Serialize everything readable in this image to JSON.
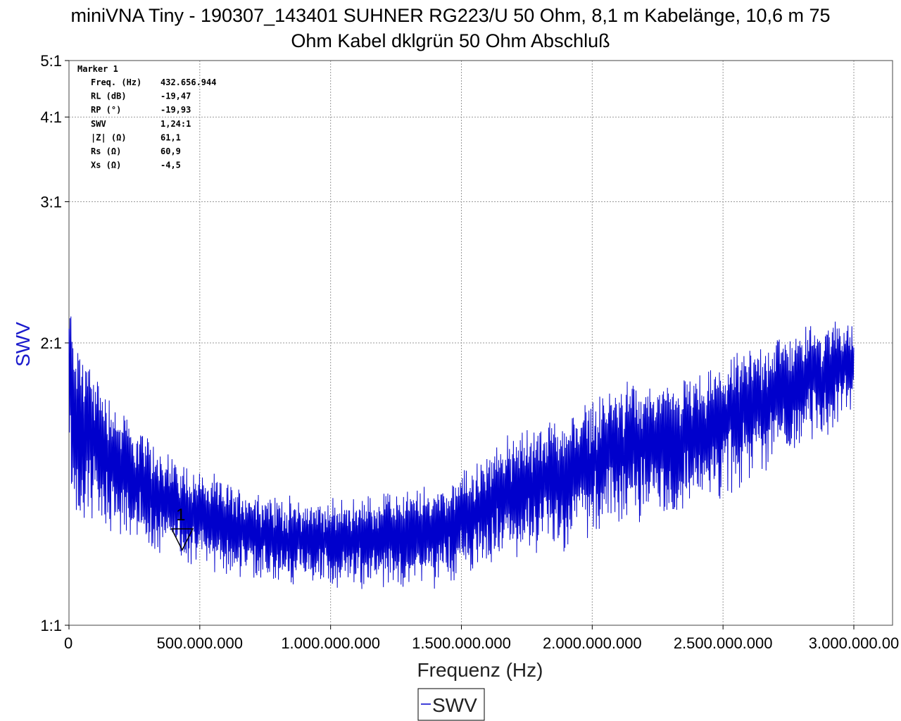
{
  "chart_data": {
    "type": "line",
    "title_line1": "miniVNA Tiny - 190307_143401 SUHNER RG223/U 50 Ohm, 8,1 m Kabelänge,  10,6 m 75",
    "title_line2": "Ohm Kabel dklgrün 50 Ohm Abschluß",
    "xlabel": "Frequenz (Hz)",
    "ylabel": "SWV",
    "xlim": [
      0,
      3000000000
    ],
    "ylim": [
      1,
      5
    ],
    "y_scale": "swr",
    "x_ticks": [
      {
        "value": 0,
        "label": "0"
      },
      {
        "value": 500000000,
        "label": "500.000.000"
      },
      {
        "value": 1000000000,
        "label": "1.000.000.000"
      },
      {
        "value": 1500000000,
        "label": "1.500.000.000"
      },
      {
        "value": 2000000000,
        "label": "2.000.000.000"
      },
      {
        "value": 2500000000,
        "label": "2.500.000.000"
      },
      {
        "value": 3000000000,
        "label": "3.000.000.00"
      }
    ],
    "y_ticks": [
      {
        "value": 1,
        "label": "1:1"
      },
      {
        "value": 2,
        "label": "2:1"
      },
      {
        "value": 3,
        "label": "3:1"
      },
      {
        "value": 4,
        "label": "4:1"
      },
      {
        "value": 5,
        "label": "5:1"
      }
    ],
    "grid": true,
    "legend": {
      "placement": "bottom-center",
      "entries": [
        "SWV"
      ]
    },
    "series": [
      {
        "name": "SWV",
        "color": "#0000cc",
        "x_start": 0,
        "x_end": 3000000000,
        "envelope_x": [
          0,
          30000000,
          100000000,
          200000000,
          300000000,
          430000000,
          600000000,
          800000000,
          1000000000,
          1200000000,
          1400000000,
          1550000000,
          1700000000,
          1900000000,
          2000000000,
          2150000000,
          2300000000,
          2450000000,
          2600000000,
          2750000000,
          2900000000,
          3000000000
        ],
        "envelope_center": [
          1.8,
          1.65,
          1.55,
          1.45,
          1.38,
          1.32,
          1.27,
          1.23,
          1.22,
          1.23,
          1.25,
          1.3,
          1.38,
          1.42,
          1.48,
          1.55,
          1.55,
          1.6,
          1.7,
          1.78,
          1.85,
          1.9
        ],
        "envelope_amplitude": [
          0.45,
          0.35,
          0.3,
          0.22,
          0.18,
          0.15,
          0.13,
          0.12,
          0.12,
          0.13,
          0.14,
          0.16,
          0.2,
          0.22,
          0.24,
          0.24,
          0.24,
          0.24,
          0.26,
          0.26,
          0.26,
          0.22
        ]
      }
    ],
    "marker": {
      "label": "1",
      "x": 432656944,
      "y": 1.24,
      "readout_title": "Marker 1",
      "readout": [
        {
          "name": "Freq. (Hz)",
          "value": "432.656.944"
        },
        {
          "name": "RL (dB)",
          "value": "-19,47"
        },
        {
          "name": "RP (°)",
          "value": "-19,93"
        },
        {
          "name": "SWV",
          "value": "1,24:1"
        },
        {
          "name": "|Z| (Ω)",
          "value": "61,1"
        },
        {
          "name": "Rs (Ω)",
          "value": "60,9"
        },
        {
          "name": "Xs (Ω)",
          "value": "-4,5"
        }
      ]
    }
  }
}
